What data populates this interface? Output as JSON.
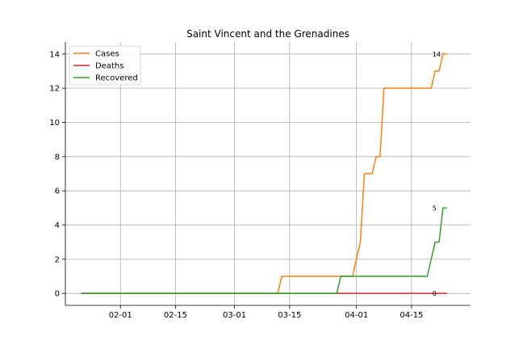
{
  "chart_data": {
    "type": "line",
    "title": "Saint Vincent and the Grenadines",
    "xlabel": "",
    "ylabel": "",
    "x_range": [
      "2020-01-18",
      "2020-04-30"
    ],
    "ylim": [
      -0.7,
      14.7
    ],
    "yticks": [
      0,
      2,
      4,
      6,
      8,
      10,
      12,
      14
    ],
    "xticks": [
      {
        "date": "2020-02-01",
        "label": "02-01"
      },
      {
        "date": "2020-02-15",
        "label": "02-15"
      },
      {
        "date": "2020-03-01",
        "label": "03-01"
      },
      {
        "date": "2020-03-15",
        "label": "03-15"
      },
      {
        "date": "2020-04-01",
        "label": "04-01"
      },
      {
        "date": "2020-04-15",
        "label": "04-15"
      }
    ],
    "grid": true,
    "legend_position": "top-left",
    "series": [
      {
        "name": "Cases",
        "color": "#ff7f0e",
        "end_label": "14",
        "points": [
          [
            "2020-01-22",
            0
          ],
          [
            "2020-03-12",
            0
          ],
          [
            "2020-03-13",
            1
          ],
          [
            "2020-03-31",
            1
          ],
          [
            "2020-04-02",
            3
          ],
          [
            "2020-04-03",
            7
          ],
          [
            "2020-04-05",
            7
          ],
          [
            "2020-04-06",
            8
          ],
          [
            "2020-04-07",
            8
          ],
          [
            "2020-04-08",
            12
          ],
          [
            "2020-04-20",
            12
          ],
          [
            "2020-04-21",
            13
          ],
          [
            "2020-04-22",
            13
          ],
          [
            "2020-04-23",
            14
          ],
          [
            "2020-04-24",
            14
          ]
        ]
      },
      {
        "name": "Deaths",
        "color": "#d62728",
        "end_label": "0",
        "points": [
          [
            "2020-01-22",
            0
          ],
          [
            "2020-04-24",
            0
          ]
        ]
      },
      {
        "name": "Recovered",
        "color": "#2ca02c",
        "end_label": "5",
        "points": [
          [
            "2020-01-22",
            0
          ],
          [
            "2020-03-27",
            0
          ],
          [
            "2020-03-28",
            1
          ],
          [
            "2020-04-19",
            1
          ],
          [
            "2020-04-21",
            3
          ],
          [
            "2020-04-22",
            3
          ],
          [
            "2020-04-23",
            5
          ],
          [
            "2020-04-24",
            5
          ]
        ]
      }
    ]
  }
}
